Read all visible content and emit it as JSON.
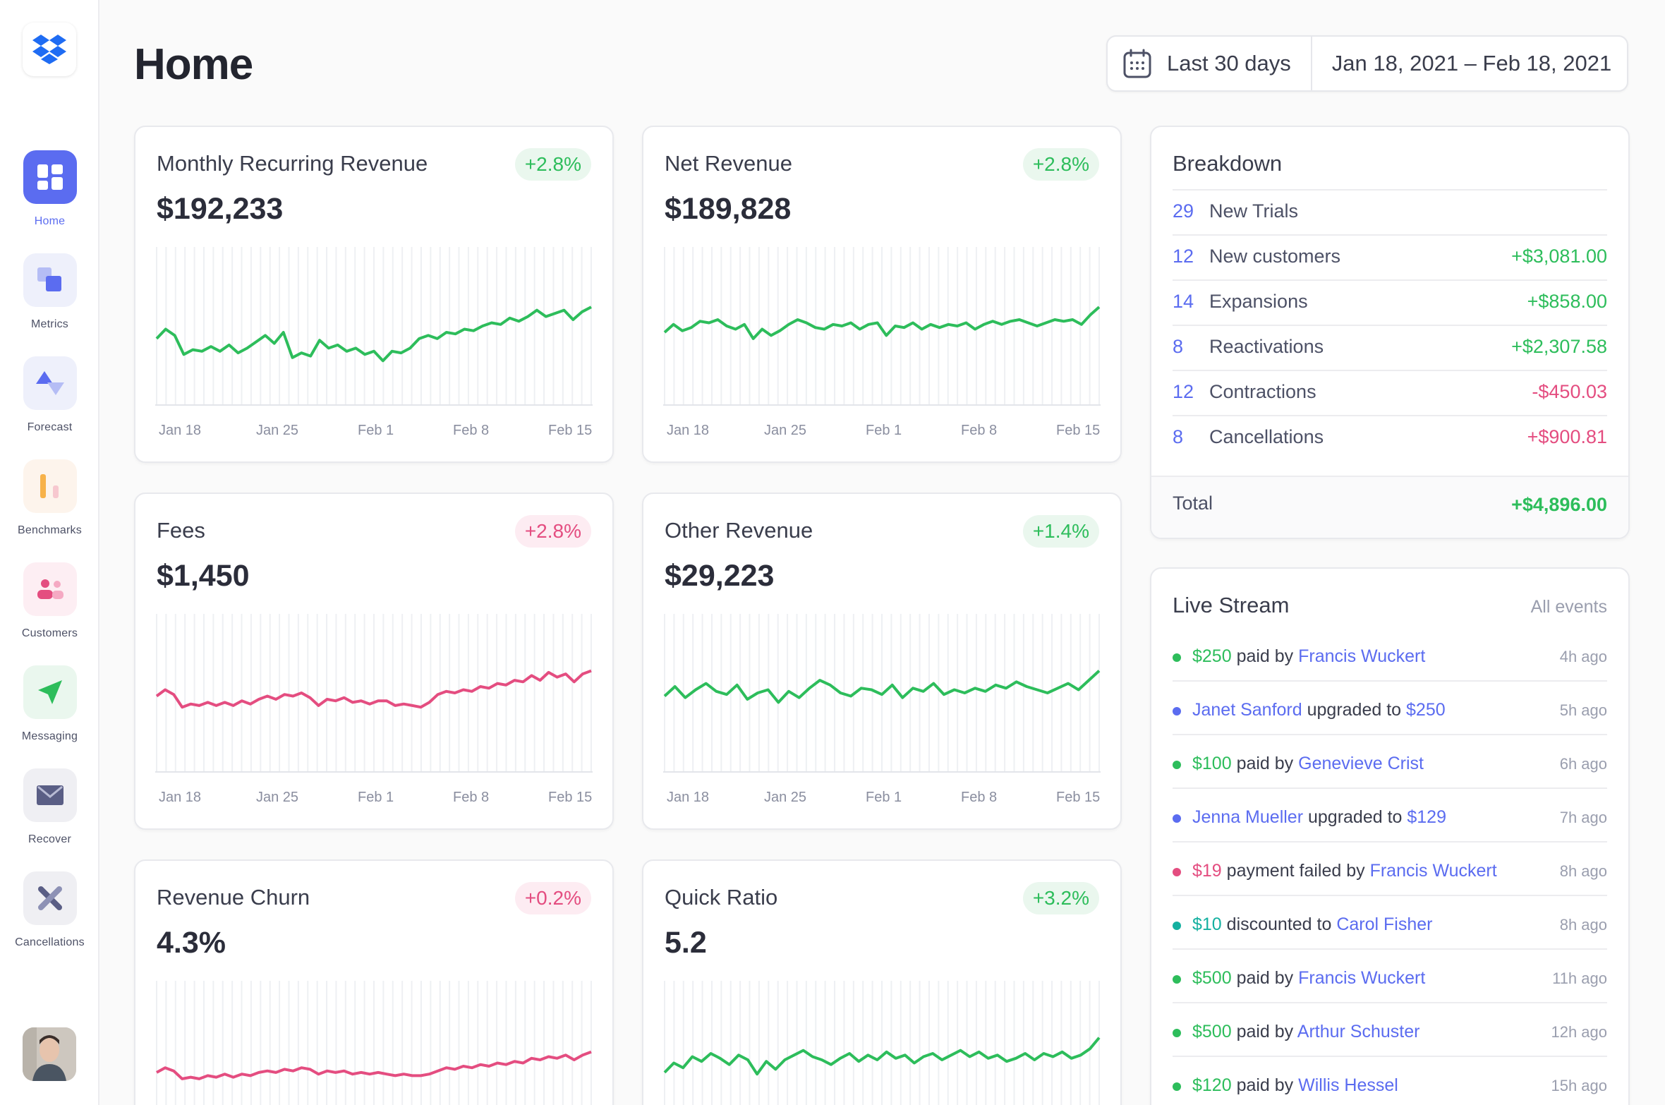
{
  "app": {
    "title": "Home"
  },
  "sidebar": {
    "items": [
      {
        "label": "Home",
        "icon": "dashboard-grid-icon",
        "active": true
      },
      {
        "label": "Metrics",
        "icon": "metrics-squares-icon"
      },
      {
        "label": "Forecast",
        "icon": "forecast-triangle-icon"
      },
      {
        "label": "Benchmarks",
        "icon": "benchmarks-bars-icon"
      },
      {
        "label": "Customers",
        "icon": "customers-people-icon"
      },
      {
        "label": "Messaging",
        "icon": "paper-plane-icon"
      },
      {
        "label": "Recover",
        "icon": "envelope-icon"
      },
      {
        "label": "Cancellations",
        "icon": "x-close-icon"
      }
    ]
  },
  "header": {
    "range_label": "Last 30 days",
    "date_range": "Jan 18, 2021 – Feb 18, 2021"
  },
  "colors": {
    "accent": "#5b6cf0",
    "green": "#2dbd5b",
    "pink": "#e44d80",
    "teal": "#14b0a0"
  },
  "metrics": [
    {
      "title": "Monthly Recurring Revenue",
      "badge": "+2.8%",
      "value": "$192,233"
    },
    {
      "title": "Net Revenue",
      "badge": "+2.8%",
      "value": "$189,828"
    },
    {
      "title": "Fees",
      "badge": "+2.8%",
      "value": "$1,450"
    },
    {
      "title": "Other Revenue",
      "badge": "+1.4%",
      "value": "$29,223"
    },
    {
      "title": "Revenue Churn",
      "badge": "+0.2%",
      "value": "4.3%"
    },
    {
      "title": "Quick Ratio",
      "badge": "+3.2%",
      "value": "5.2"
    }
  ],
  "x_ticks": [
    "Jan 18",
    "Jan 25",
    "Feb 1",
    "Feb 8",
    "Feb 15"
  ],
  "chart_data": [
    {
      "type": "line",
      "series": [
        {
          "values": [
            42,
            48,
            44,
            32,
            35,
            34,
            37,
            34,
            38,
            33,
            36,
            40,
            44,
            39,
            46,
            30,
            33,
            31,
            41,
            36,
            38,
            34,
            36,
            32,
            34,
            28,
            34,
            33,
            36,
            42,
            44,
            42,
            46,
            45,
            48,
            47,
            50,
            52,
            51,
            55,
            53,
            56,
            60,
            56,
            58,
            60,
            54,
            59,
            62
          ]
        }
      ],
      "color": "#2dbd5b"
    },
    {
      "type": "line",
      "series": [
        {
          "values": [
            46,
            51,
            47,
            49,
            53,
            52,
            54,
            50,
            48,
            51,
            42,
            48,
            44,
            47,
            51,
            54,
            52,
            49,
            48,
            51,
            50,
            52,
            48,
            51,
            52,
            44,
            50,
            49,
            52,
            48,
            51,
            49,
            51,
            50,
            52,
            48,
            51,
            53,
            51,
            53,
            54,
            52,
            50,
            52,
            54,
            53,
            54,
            51,
            57,
            62
          ]
        }
      ],
      "color": "#2dbd5b"
    },
    {
      "type": "line",
      "series": [
        {
          "values": [
            48,
            52,
            49,
            41,
            43,
            42,
            44,
            42,
            44,
            42,
            45,
            43,
            46,
            48,
            46,
            49,
            48,
            50,
            47,
            42,
            46,
            45,
            47,
            44,
            45,
            43,
            45,
            45,
            42,
            43,
            42,
            41,
            44,
            49,
            51,
            50,
            52,
            51,
            54,
            53,
            56,
            55,
            58,
            57,
            61,
            58,
            63,
            60,
            62,
            57,
            62,
            64
          ]
        }
      ],
      "color": "#e44d80"
    },
    {
      "type": "line",
      "series": [
        {
          "values": [
            48,
            54,
            47,
            52,
            56,
            51,
            49,
            55,
            46,
            50,
            52,
            44,
            51,
            47,
            53,
            58,
            55,
            50,
            48,
            53,
            52,
            49,
            55,
            47,
            53,
            51,
            56,
            49,
            52,
            50,
            53,
            51,
            55,
            53,
            57,
            54,
            52,
            50,
            53,
            56,
            52,
            58,
            64
          ]
        }
      ],
      "color": "#2dbd5b"
    },
    {
      "type": "line",
      "series": [
        {
          "values": [
            42,
            45,
            43,
            38,
            39,
            38,
            40,
            39,
            41,
            39,
            41,
            40,
            42,
            43,
            42,
            44,
            43,
            45,
            44,
            41,
            43,
            42,
            43,
            41,
            42,
            41,
            42,
            41,
            40,
            41,
            40,
            40,
            41,
            43,
            45,
            44,
            46,
            45,
            47,
            46,
            48,
            47,
            49,
            48,
            51,
            50,
            52,
            51,
            53,
            50,
            53,
            55
          ]
        }
      ],
      "color": "#e44d80"
    },
    {
      "type": "line",
      "series": [
        {
          "values": [
            42,
            48,
            45,
            52,
            49,
            54,
            51,
            47,
            53,
            50,
            41,
            49,
            44,
            50,
            53,
            56,
            52,
            50,
            47,
            51,
            54,
            49,
            53,
            50,
            55,
            51,
            53,
            48,
            52,
            54,
            50,
            53,
            56,
            52,
            55,
            51,
            53,
            49,
            51,
            54,
            50,
            54,
            52,
            55,
            51,
            53,
            57,
            64
          ]
        }
      ],
      "color": "#2dbd5b"
    }
  ],
  "breakdown": {
    "title": "Breakdown",
    "rows": [
      {
        "count": "29",
        "label": "New Trials",
        "amount": ""
      },
      {
        "count": "12",
        "label": "New customers",
        "amount": "+$3,081.00"
      },
      {
        "count": "14",
        "label": "Expansions",
        "amount": "+$858.00"
      },
      {
        "count": "8",
        "label": "Reactivations",
        "amount": "+$2,307.58"
      },
      {
        "count": "12",
        "label": "Contractions",
        "amount": "-$450.03"
      },
      {
        "count": "8",
        "label": "Cancellations",
        "amount": "+$900.81"
      }
    ],
    "total_label": "Total",
    "total_amount": "+$4,896.00"
  },
  "live_stream": {
    "title": "Live Stream",
    "all_events": "All events",
    "events": [
      {
        "parts": [
          [
            "$250",
            "green"
          ],
          [
            " paid by ",
            ""
          ],
          [
            "Francis Wuckert",
            "blue"
          ]
        ],
        "time": "4h ago",
        "dot": "green"
      },
      {
        "parts": [
          [
            "Janet Sanford",
            "blue"
          ],
          [
            " upgraded to ",
            ""
          ],
          [
            "$250",
            "blue"
          ]
        ],
        "time": "5h ago",
        "dot": "blue"
      },
      {
        "parts": [
          [
            "$100",
            "green"
          ],
          [
            " paid by ",
            ""
          ],
          [
            "Genevieve Crist",
            "blue"
          ]
        ],
        "time": "6h ago",
        "dot": "green"
      },
      {
        "parts": [
          [
            "Jenna Mueller",
            "blue"
          ],
          [
            " upgraded to ",
            ""
          ],
          [
            "$129",
            "blue"
          ]
        ],
        "time": "7h ago",
        "dot": "blue"
      },
      {
        "parts": [
          [
            "$19",
            "pink"
          ],
          [
            " payment failed by ",
            ""
          ],
          [
            "Francis Wuckert",
            "blue"
          ]
        ],
        "time": "8h ago",
        "dot": "pink"
      },
      {
        "parts": [
          [
            "$10",
            "teal"
          ],
          [
            " discounted to ",
            ""
          ],
          [
            "Carol Fisher",
            "blue"
          ]
        ],
        "time": "8h ago",
        "dot": "teal"
      },
      {
        "parts": [
          [
            "$500",
            "green"
          ],
          [
            " paid by ",
            ""
          ],
          [
            "Francis Wuckert",
            "blue"
          ]
        ],
        "time": "11h ago",
        "dot": "green"
      },
      {
        "parts": [
          [
            "$500",
            "green"
          ],
          [
            " paid by ",
            ""
          ],
          [
            "Arthur Schuster",
            "blue"
          ]
        ],
        "time": "12h ago",
        "dot": "green"
      },
      {
        "parts": [
          [
            "$120",
            "green"
          ],
          [
            " paid by ",
            ""
          ],
          [
            "Willis Hessel",
            "blue"
          ]
        ],
        "time": "15h ago",
        "dot": "green"
      }
    ]
  }
}
